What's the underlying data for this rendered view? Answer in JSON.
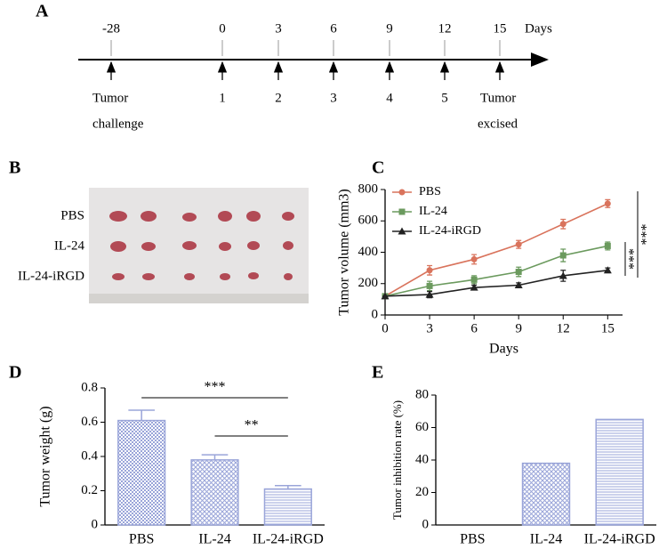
{
  "panel_labels": [
    "A",
    "B",
    "C",
    "D",
    "E"
  ],
  "timeline": {
    "unit": "Days",
    "days": [
      -28,
      0,
      3,
      6,
      9,
      12,
      15
    ],
    "doses": [
      1,
      2,
      3,
      4,
      5
    ],
    "start": [
      "Tumor",
      "challenge"
    ],
    "end": [
      "Tumor",
      "excised"
    ]
  },
  "photo": {
    "rows": [
      "PBS",
      "IL-24",
      "IL-24-iRGD"
    ]
  },
  "chart_data": [
    {
      "type": "line",
      "xlabel": "Days",
      "ylabel": "Tumor volume (mm3)",
      "x": [
        0,
        3,
        6,
        9,
        12,
        15
      ],
      "xlim": [
        0,
        16
      ],
      "xticks": [
        0,
        3,
        6,
        9,
        12,
        15
      ],
      "ylim": [
        0,
        800
      ],
      "yticks": [
        0,
        200,
        400,
        600,
        800
      ],
      "series": [
        {
          "name": "PBS",
          "color": "#d9735c",
          "marker": "circle",
          "values": [
            120,
            285,
            355,
            450,
            580,
            710
          ],
          "errors": [
            0,
            30,
            30,
            25,
            30,
            25
          ]
        },
        {
          "name": "IL-24",
          "color": "#6b9a5e",
          "marker": "square",
          "values": [
            120,
            185,
            225,
            275,
            380,
            440
          ],
          "errors": [
            0,
            30,
            25,
            30,
            40,
            25
          ]
        },
        {
          "name": "IL-24-iRGD",
          "color": "#222222",
          "marker": "triangle",
          "values": [
            120,
            130,
            175,
            190,
            250,
            285
          ],
          "errors": [
            0,
            20,
            15,
            15,
            35,
            15
          ]
        }
      ],
      "annotations": [
        "***",
        "***"
      ]
    },
    {
      "type": "bar",
      "ylabel": "Tumor weight (g)",
      "categories": [
        "PBS",
        "IL-24",
        "IL-24-iRGD"
      ],
      "values": [
        0.61,
        0.38,
        0.21
      ],
      "errors": [
        0.06,
        0.03,
        0.02
      ],
      "color": "#9aa5d9",
      "patterns": [
        "dots",
        "cross",
        "hlines"
      ],
      "ylim": [
        0,
        0.8
      ],
      "yticks": [
        0,
        0.2,
        0.4,
        0.6,
        0.8
      ],
      "annotations": [
        "***",
        "**"
      ]
    },
    {
      "type": "bar",
      "ylabel": "Tumor inhibition rate (%)",
      "categories": [
        "PBS",
        "IL-24",
        "IL-24-iRGD"
      ],
      "values": [
        0,
        38,
        65
      ],
      "color": "#9aa5d9",
      "patterns": [
        "dots",
        "cross",
        "hlines"
      ],
      "ylim": [
        0,
        80
      ],
      "yticks": [
        0,
        20,
        40,
        60,
        80
      ]
    }
  ]
}
